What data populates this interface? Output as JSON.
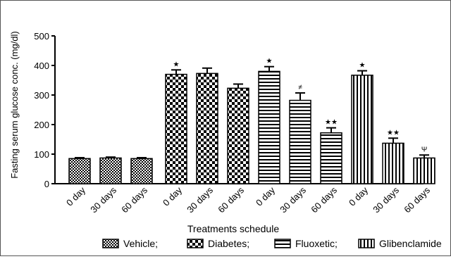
{
  "chart_data": {
    "type": "bar",
    "ylabel": "Fasting serum glucose conc. (mg/dl)",
    "xlabel": "Treatments schedule",
    "ylim": [
      0,
      500
    ],
    "yticks": [
      "0",
      "100",
      "200",
      "300",
      "400",
      "500"
    ],
    "groups": [
      {
        "name": "Vehicle",
        "legend_label": "Vehicle;",
        "pattern": "fine-check",
        "bars": [
          {
            "label": "0 day",
            "value": 85,
            "error": 3,
            "annotation": ""
          },
          {
            "label": "30 days",
            "value": 87,
            "error": 3,
            "annotation": ""
          },
          {
            "label": "60 days",
            "value": 85,
            "error": 3,
            "annotation": ""
          }
        ]
      },
      {
        "name": "Diabetes",
        "legend_label": "Diabetes;",
        "pattern": "coarse-check",
        "bars": [
          {
            "label": "0 day",
            "value": 370,
            "error": 15,
            "annotation": "★"
          },
          {
            "label": "30 days",
            "value": 373,
            "error": 18,
            "annotation": ""
          },
          {
            "label": "60 days",
            "value": 323,
            "error": 14,
            "annotation": ""
          }
        ]
      },
      {
        "name": "Fluoxetic",
        "legend_label": "Fluoxetic;",
        "pattern": "horizontal-lines",
        "bars": [
          {
            "label": "0 day",
            "value": 380,
            "error": 16,
            "annotation": "★"
          },
          {
            "label": "30 days",
            "value": 282,
            "error": 25,
            "annotation": "≠"
          },
          {
            "label": "60 days",
            "value": 172,
            "error": 17,
            "annotation": "★★"
          }
        ]
      },
      {
        "name": "Glibenclamide",
        "legend_label": "Glibenclamide",
        "pattern": "vertical-lines",
        "bars": [
          {
            "label": "0 day",
            "value": 367,
            "error": 15,
            "annotation": "★"
          },
          {
            "label": "30 days",
            "value": 137,
            "error": 17,
            "annotation": "★★"
          },
          {
            "label": "60 days",
            "value": 87,
            "error": 10,
            "annotation": "Ψ"
          }
        ]
      }
    ],
    "legend_position": "bottom",
    "grid": false
  }
}
